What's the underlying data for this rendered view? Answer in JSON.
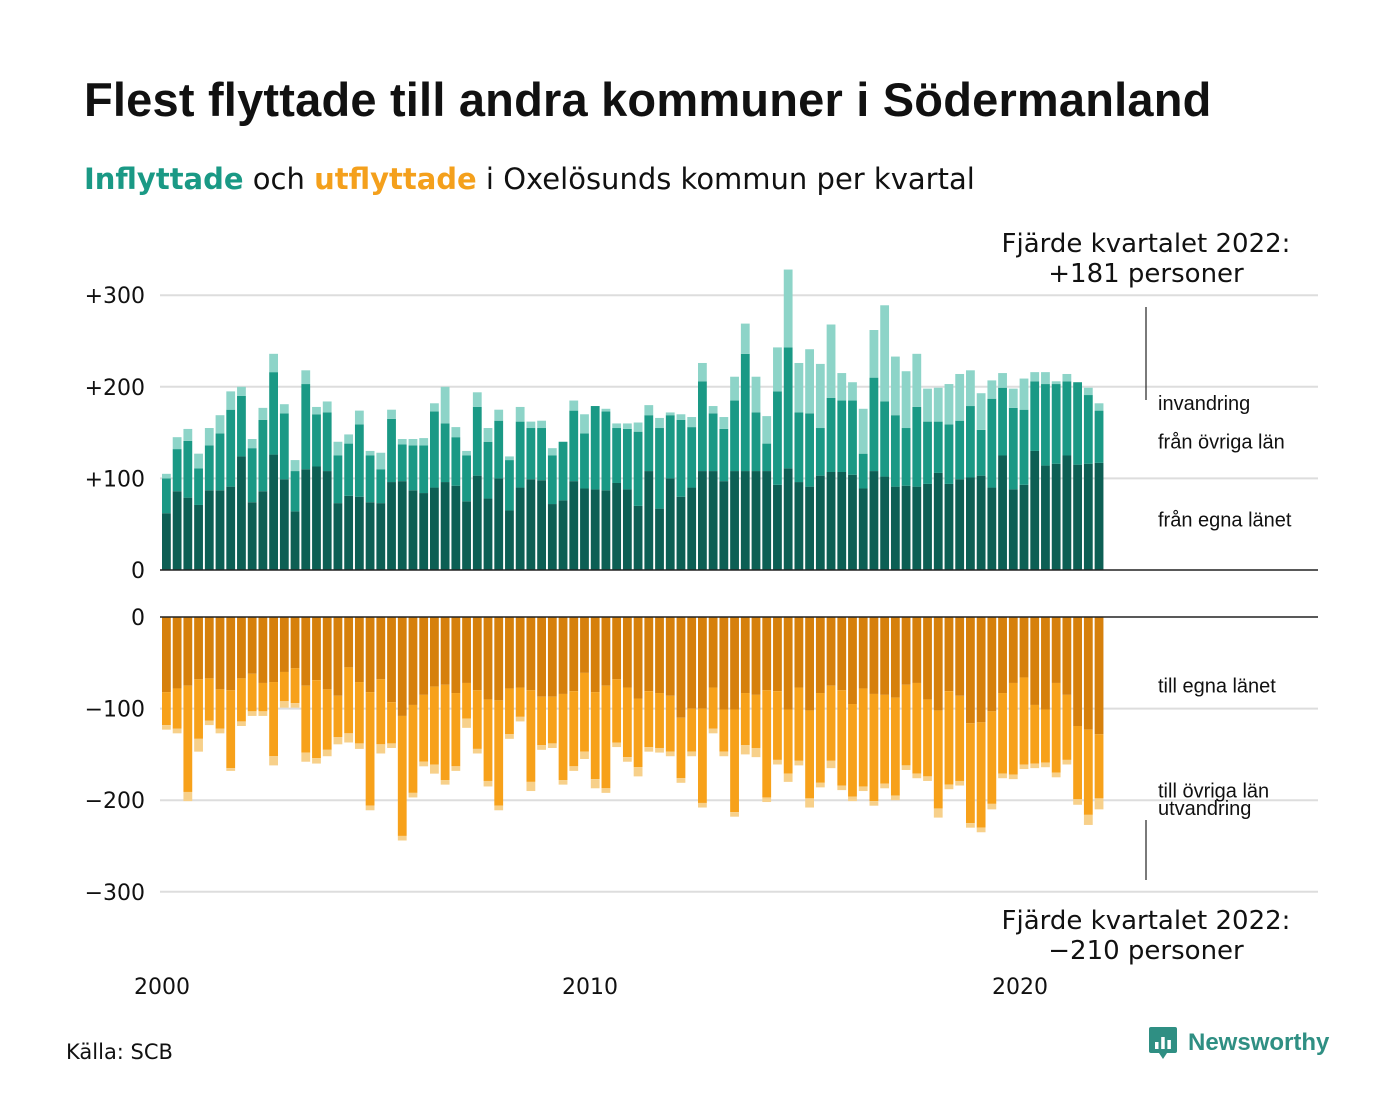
{
  "title": "Flest flyttade till andra kommuner i Södermanland",
  "subtitle": {
    "in": "Inflyttade",
    "mid1": " och ",
    "out": "utflyttade",
    "mid2": " i Oxelösunds kommun per kvartal"
  },
  "source": "Källa: SCB",
  "logo": {
    "text": "Newsworthy",
    "icon": "newsworthy-chart-bubble-icon",
    "color": "#2f8f83"
  },
  "colors": {
    "in_own": "#0d5f54",
    "in_other": "#1a9985",
    "in_imm": "#8dd4c8",
    "out_own": "#d6800c",
    "out_other": "#f7a11a",
    "out_emi": "#f7d08a"
  },
  "chart_data": {
    "type": "bar",
    "stacked": true,
    "x_start_year": 2000,
    "frequency": "quarterly",
    "x_ticks": [
      "2000",
      "2010",
      "2020"
    ],
    "upper_panel": {
      "y_ticks": [
        "+300",
        "+200",
        "+100",
        "0"
      ],
      "ylim": [
        0,
        300
      ],
      "series": [
        {
          "name": "från egna länet",
          "key": "own",
          "values": [
            62,
            86,
            79,
            71,
            87,
            87,
            91,
            124,
            74,
            86,
            126,
            99,
            64,
            110,
            113,
            108,
            73,
            81,
            80,
            74,
            73,
            96,
            97,
            87,
            84,
            90,
            96,
            92,
            75,
            103,
            78,
            100,
            65,
            90,
            99,
            98,
            72,
            76,
            97,
            89,
            88,
            87,
            95,
            88,
            70,
            108,
            67,
            100,
            80,
            90,
            108,
            108,
            97,
            108,
            108,
            108,
            108,
            93,
            111,
            96,
            91,
            103,
            107,
            107,
            104,
            89,
            108,
            102,
            91,
            92,
            91,
            94,
            106,
            94,
            99,
            101,
            103,
            90,
            125,
            88,
            93,
            130,
            114,
            116,
            125,
            115,
            116,
            117
          ]
        },
        {
          "name": "från övriga län",
          "key": "other",
          "values": [
            38,
            46,
            62,
            40,
            49,
            62,
            84,
            66,
            59,
            78,
            90,
            72,
            44,
            93,
            57,
            64,
            52,
            57,
            79,
            51,
            37,
            69,
            40,
            49,
            52,
            83,
            64,
            53,
            50,
            75,
            62,
            63,
            55,
            72,
            56,
            57,
            53,
            64,
            77,
            60,
            91,
            86,
            60,
            66,
            81,
            61,
            88,
            69,
            84,
            66,
            98,
            63,
            57,
            77,
            128,
            64,
            30,
            102,
            132,
            76,
            80,
            52,
            81,
            78,
            81,
            38,
            102,
            82,
            78,
            63,
            87,
            68,
            56,
            65,
            64,
            78,
            50,
            97,
            74,
            89,
            82,
            76,
            89,
            87,
            81,
            90,
            75,
            57
          ]
        },
        {
          "name": "invandring",
          "key": "imm",
          "values": [
            5,
            13,
            13,
            16,
            19,
            20,
            20,
            10,
            10,
            13,
            20,
            10,
            12,
            15,
            8,
            12,
            15,
            10,
            15,
            5,
            18,
            10,
            6,
            7,
            8,
            9,
            40,
            11,
            5,
            16,
            15,
            12,
            4,
            16,
            7,
            8,
            8,
            0,
            11,
            21,
            0,
            3,
            5,
            6,
            10,
            11,
            11,
            3,
            6,
            11,
            20,
            8,
            13,
            26,
            33,
            39,
            30,
            48,
            85,
            54,
            70,
            70,
            80,
            30,
            20,
            49,
            52,
            105,
            64,
            62,
            58,
            36,
            37,
            44,
            51,
            39,
            40,
            20,
            16,
            21,
            34,
            10,
            13,
            3,
            8,
            0,
            8,
            8
          ]
        }
      ]
    },
    "lower_panel": {
      "y_ticks": [
        "0",
        "−100",
        "−200",
        "−300"
      ],
      "ylim": [
        -300,
        0
      ],
      "series": [
        {
          "name": "till egna länet",
          "key": "own",
          "values": [
            -82,
            -78,
            -75,
            -68,
            -67,
            -79,
            -80,
            -67,
            -62,
            -72,
            -71,
            -60,
            -56,
            -75,
            -69,
            -79,
            -86,
            -55,
            -71,
            -82,
            -68,
            -93,
            -108,
            -96,
            -85,
            -76,
            -74,
            -83,
            -72,
            -80,
            -90,
            -91,
            -78,
            -77,
            -80,
            -87,
            -87,
            -84,
            -81,
            -61,
            -82,
            -75,
            -68,
            -77,
            -89,
            -81,
            -83,
            -86,
            -110,
            -100,
            -100,
            -77,
            -101,
            -101,
            -83,
            -85,
            -80,
            -81,
            -101,
            -77,
            -102,
            -83,
            -75,
            -80,
            -95,
            -78,
            -84,
            -85,
            -88,
            -74,
            -72,
            -90,
            -102,
            -81,
            -86,
            -116,
            -115,
            -103,
            -83,
            -72,
            -66,
            -96,
            -101,
            -72,
            -85,
            -119,
            -123,
            -128
          ]
        },
        {
          "name": "till övriga län",
          "key": "other",
          "values": [
            -36,
            -44,
            -116,
            -65,
            -46,
            -43,
            -85,
            -47,
            -41,
            -31,
            -81,
            -32,
            -38,
            -73,
            -85,
            -66,
            -45,
            -72,
            -67,
            -124,
            -71,
            -45,
            -131,
            -96,
            -73,
            -85,
            -104,
            -80,
            -39,
            -64,
            -89,
            -115,
            -50,
            -32,
            -100,
            -53,
            -51,
            -94,
            -82,
            -86,
            -95,
            -112,
            -69,
            -76,
            -75,
            -61,
            -60,
            -61,
            -66,
            -47,
            -103,
            -45,
            -46,
            -112,
            -57,
            -58,
            -117,
            -75,
            -70,
            -80,
            -96,
            -98,
            -82,
            -104,
            -101,
            -107,
            -117,
            -97,
            -107,
            -88,
            -99,
            -84,
            -107,
            -102,
            -93,
            -109,
            -115,
            -101,
            -88,
            -100,
            -95,
            -64,
            -58,
            -98,
            -71,
            -80,
            -93,
            -70
          ]
        },
        {
          "name": "utvandring",
          "key": "emi",
          "values": [
            -5,
            -5,
            -10,
            -14,
            -5,
            -5,
            -3,
            -5,
            -5,
            -5,
            -10,
            -7,
            -5,
            -10,
            -6,
            -7,
            -8,
            -10,
            -6,
            -5,
            -10,
            -5,
            -5,
            -5,
            -5,
            -10,
            -5,
            -5,
            -10,
            -5,
            -6,
            -5,
            -5,
            -5,
            -10,
            -5,
            -5,
            -5,
            -5,
            -8,
            -10,
            -5,
            -5,
            -5,
            -10,
            -5,
            -5,
            -5,
            -5,
            -5,
            -5,
            -5,
            -5,
            -5,
            -10,
            -10,
            -5,
            -5,
            -9,
            -5,
            -10,
            -5,
            -8,
            -5,
            -5,
            -5,
            -5,
            -5,
            -5,
            -5,
            -5,
            -5,
            -10,
            -5,
            -5,
            -5,
            -5,
            -6,
            -5,
            -5,
            -5,
            -5,
            -5,
            -5,
            -5,
            -6,
            -11,
            -12
          ]
        }
      ]
    },
    "annotations": {
      "top": [
        "Fjärde kvartalet 2022:",
        "+181 personer"
      ],
      "bottom": [
        "Fjärde kvartalet 2022:",
        "−210 personer"
      ]
    }
  }
}
